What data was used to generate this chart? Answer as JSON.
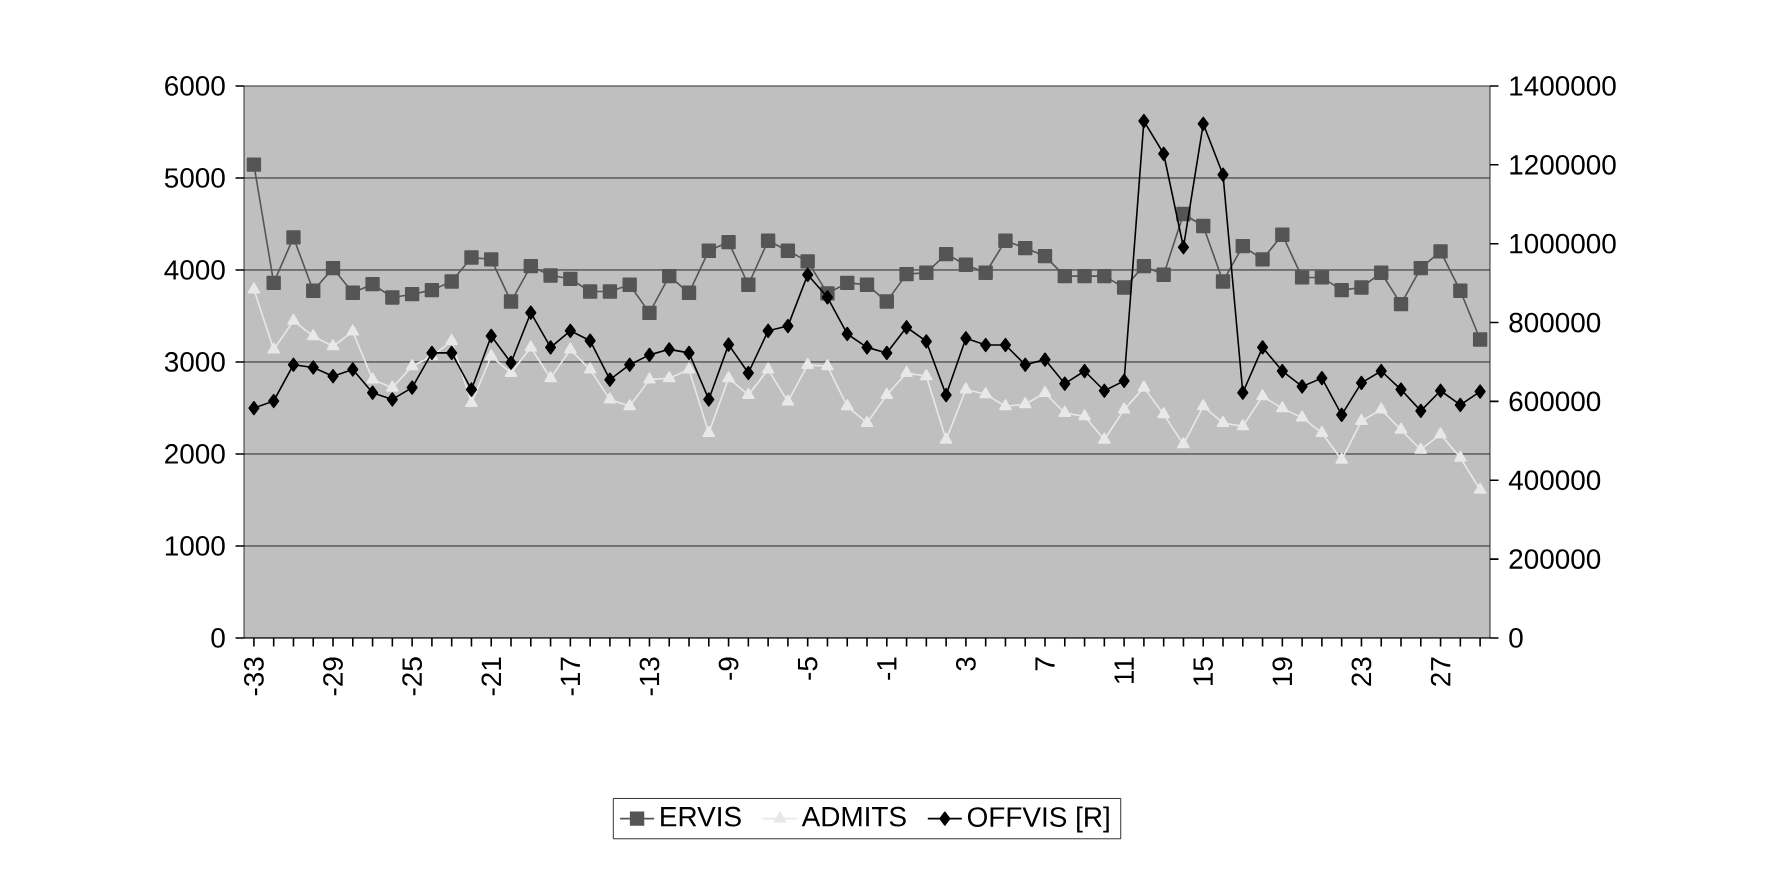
{
  "chart_data": {
    "type": "line",
    "categories": [
      "-33",
      null,
      null,
      null,
      "-29",
      null,
      null,
      null,
      "-25",
      null,
      null,
      null,
      "-21",
      null,
      null,
      null,
      "-17",
      null,
      null,
      null,
      "-13",
      null,
      null,
      null,
      "-9",
      null,
      null,
      null,
      "-5",
      null,
      null,
      null,
      "-1",
      null,
      null,
      null,
      "3",
      null,
      null,
      null,
      "7",
      null,
      null,
      null,
      "11",
      null,
      null,
      null,
      "15",
      null,
      null,
      null,
      "19",
      null,
      null,
      null,
      "23",
      null,
      null,
      null,
      "27",
      null,
      null
    ],
    "series": [
      {
        "name": "ERVIS",
        "color": "#555555",
        "marker": "square",
        "values": [
          5145,
          3860,
          4354,
          3774,
          4020,
          3752,
          3846,
          3701,
          3737,
          3781,
          3875,
          4136,
          4115,
          3657,
          4042,
          3940,
          3904,
          3766,
          3766,
          3839,
          3534,
          3933,
          3752,
          4209,
          4303,
          3839,
          4318,
          4209,
          4093,
          3745,
          3860,
          3839,
          3657,
          3955,
          3970,
          4173,
          4057,
          3970,
          4318,
          4238,
          4151,
          3933,
          3933,
          3933,
          3810,
          4042,
          3948,
          4608,
          4478,
          3875,
          4260,
          4115,
          4383,
          3919,
          3919,
          3781,
          3810,
          3970,
          3628,
          4020,
          4202,
          3774,
          3244
        ]
      },
      {
        "name": "ADMITS",
        "color": "#e8e8e8",
        "marker": "triangle",
        "values": [
          3788,
          3135,
          3447,
          3280,
          3171,
          3331,
          2808,
          2721,
          2954,
          3062,
          3229,
          2554,
          3062,
          2881,
          3157,
          2823,
          3135,
          2917,
          2591,
          2518,
          2808,
          2823,
          2917,
          2228,
          2823,
          2642,
          2917,
          2569,
          2968,
          2954,
          2518,
          2337,
          2642,
          2881,
          2845,
          2155,
          2700,
          2649,
          2518,
          2540,
          2663,
          2446,
          2409,
          2155,
          2482,
          2721,
          2431,
          2105,
          2518,
          2337,
          2300,
          2627,
          2496,
          2395,
          2228,
          1938,
          2358,
          2482,
          2264,
          2046,
          2213,
          1959,
          1611
        ]
      },
      {
        "name": "OFFVIS [R]",
        "color": "#000000",
        "marker": "diamond",
        "axis": "y2",
        "values": [
          583000,
          601000,
          693000,
          686000,
          664000,
          681000,
          622000,
          605000,
          635000,
          723000,
          723000,
          630000,
          766000,
          698000,
          825000,
          737000,
          779000,
          754000,
          655000,
          693000,
          718000,
          732000,
          723000,
          605000,
          744000,
          672000,
          779000,
          791000,
          921000,
          864000,
          771000,
          737000,
          723000,
          788000,
          752000,
          616000,
          760000,
          743000,
          743000,
          693000,
          706000,
          645000,
          677000,
          627000,
          652000,
          1311000,
          1228000,
          991000,
          1304000,
          1175000,
          622000,
          737000,
          677000,
          638000,
          659000,
          566000,
          647000,
          677000,
          630000,
          576000,
          627000,
          591000,
          625000
        ]
      }
    ],
    "ylim": [
      0,
      6000
    ],
    "yticks": [
      0,
      1000,
      2000,
      3000,
      4000,
      5000,
      6000
    ],
    "y2lim": [
      0,
      1400000
    ],
    "y2ticks": [
      0,
      200000,
      400000,
      600000,
      800000,
      1000000,
      1200000,
      1400000
    ],
    "grid": "y",
    "legend": "bottom",
    "line_style": "solid"
  }
}
